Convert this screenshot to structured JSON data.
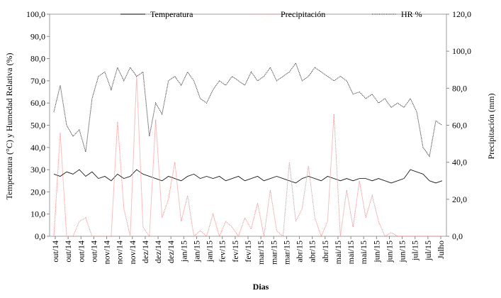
{
  "chart_data": {
    "type": "line",
    "xlabel": "Dias",
    "ylabel": "Temperatura (°C) y Humedad Relativa (%)",
    "y2label": "Precipitación (mm)",
    "ylim": [
      0,
      100
    ],
    "y2lim": [
      0,
      120
    ],
    "yticks": [
      "0,0",
      "10,0",
      "20,0",
      "30,0",
      "40,0",
      "50,0",
      "60,0",
      "70,0",
      "80,0",
      "90,0",
      "100,0"
    ],
    "y2ticks": [
      "0,0",
      "20,0",
      "40,0",
      "60,0",
      "80,0",
      "100,0",
      "120,0"
    ],
    "x_tick_labels": [
      "out/14",
      "out/14",
      "out/14",
      "out/14",
      "nov/14",
      "nov/14",
      "nov/14",
      "dez/14",
      "dez/14",
      "dez/14",
      "jan/15",
      "jan/15",
      "jan/15",
      "fev/15",
      "fev/15",
      "fev/15",
      "mar/15",
      "mar/15",
      "mar/15",
      "abr/15",
      "abr/15",
      "abr/15",
      "mai/15",
      "mai/15",
      "mai/15",
      "jun/15",
      "jun/15",
      "jun/15",
      "jul/15",
      "jul/15",
      "Julho"
    ],
    "legend": {
      "placement": "top",
      "entries": [
        "Temperatura",
        "Precipitación",
        "HR %"
      ]
    },
    "series": [
      {
        "name": "Temperatura",
        "axis": "left",
        "color": "#000000",
        "style": "solid",
        "values": [
          28,
          27,
          29,
          28,
          30,
          27,
          29,
          26,
          27,
          25,
          28,
          26,
          27,
          30,
          28,
          27,
          26,
          25,
          27,
          26,
          25,
          27,
          28,
          26,
          27,
          26,
          27,
          25,
          26,
          27,
          25,
          26,
          27,
          25,
          26,
          27,
          26,
          25,
          24,
          26,
          27,
          26,
          25,
          27,
          26,
          25,
          26,
          25,
          26,
          26,
          25,
          26,
          25,
          24,
          25,
          26,
          30,
          29,
          28,
          25,
          24,
          25
        ]
      },
      {
        "name": "Precipitación",
        "axis": "right",
        "color": "#f08080",
        "style": "dotted",
        "values": [
          0,
          56,
          0,
          0,
          8,
          10,
          0,
          0,
          0,
          0,
          62,
          15,
          0,
          87,
          5,
          0,
          63,
          10,
          20,
          40,
          8,
          22,
          0,
          3,
          0,
          12,
          0,
          8,
          5,
          0,
          10,
          4,
          18,
          0,
          25,
          3,
          0,
          40,
          8,
          15,
          38,
          10,
          0,
          8,
          66,
          0,
          25,
          5,
          30,
          10,
          22,
          8,
          0,
          2,
          0,
          0,
          0,
          0,
          0,
          0,
          0,
          0
        ]
      },
      {
        "name": "HR %",
        "axis": "left",
        "color": "#222222",
        "style": "dotted",
        "values": [
          56,
          68,
          50,
          45,
          48,
          38,
          62,
          72,
          74,
          66,
          76,
          70,
          76,
          72,
          74,
          45,
          60,
          55,
          70,
          72,
          68,
          74,
          70,
          62,
          60,
          66,
          70,
          68,
          72,
          70,
          68,
          74,
          70,
          72,
          76,
          70,
          72,
          74,
          78,
          70,
          72,
          76,
          74,
          72,
          70,
          72,
          70,
          64,
          65,
          62,
          64,
          60,
          62,
          58,
          60,
          58,
          62,
          56,
          40,
          36,
          52,
          50
        ]
      }
    ]
  }
}
